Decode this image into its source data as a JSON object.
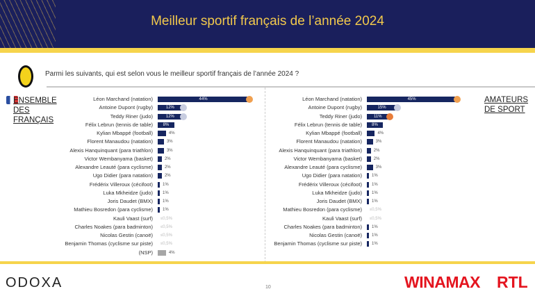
{
  "header": {
    "title": "Meilleur sportif français de l’année 2024"
  },
  "question": "Parmi les suivants, qui est selon vous le meilleur sportif français de l’année 2024 ?",
  "footer": {
    "brand": "ODOXA",
    "page": "10",
    "sponsor1": "WINAMAX",
    "sponsor2": "RTL"
  },
  "colors": {
    "bar": "#162660",
    "nsp": "#a6a6a6",
    "gold": "#f0a050",
    "silver": "#c8cde0",
    "bronze": "#e87d3a"
  },
  "chart_data": [
    {
      "type": "bar",
      "title": "ENSEMBLE DES FRANÇAIS",
      "unit": "%",
      "categories": [
        "Léon Marchand (natation)",
        "Antoine Dupont (rugby)",
        "Teddy Riner (judo)",
        "Félix Lebrun (tennis de table)",
        "Kylian Mbappé (football)",
        "Florent Manaudou (natation)",
        "Alexis Hanquinquant (para triathlon)",
        "Victor Wembanyama (basket)",
        "Alexandre Leauté (para cyclisme)",
        "Ugo Didier (para natation)",
        "Frédérix Villeroux (cécifoot)",
        "Luka Mkheidze (judo)",
        "Joris Daudet (BMX)",
        "Mathieu Bosredon (para cyclisme)",
        "Kauli Vaast (surf)",
        "Charles Noakes (para badminton)",
        "Nicolas Gestin (canoë)",
        "Benjamin Thomas (cyclisme sur piste)",
        "(NSP)"
      ],
      "values": [
        44,
        12,
        12,
        8,
        4,
        3,
        3,
        2,
        2,
        2,
        1,
        1,
        1,
        1,
        0.5,
        0.5,
        0.5,
        0.5,
        4
      ],
      "labels": [
        "44%",
        "12%",
        "12%",
        "8%",
        "4%",
        "3%",
        "3%",
        "2%",
        "2%",
        "2%",
        "1%",
        "1%",
        "1%",
        "1%",
        "≤0,5%",
        "≤0,5%",
        "≤0,5%",
        "≤0,5%",
        "4%"
      ],
      "medals": [
        "gold",
        "silver",
        "silver"
      ]
    },
    {
      "type": "bar",
      "title": "AMATEURS DE SPORT",
      "unit": "%",
      "categories": [
        "Léon Marchand (natation)",
        "Antoine Dupont (rugby)",
        "Teddy Riner (judo)",
        "Félix Lebrun (tennis de table)",
        "Kylian Mbappé (football)",
        "Florent Manaudou (natation)",
        "Alexis Hanquinquant (para triathlon)",
        "Victor Wembanyama (basket)",
        "Alexandre Leauté (para cyclisme)",
        "Ugo Didier (para natation)",
        "Frédérix Villeroux (cécifoot)",
        "Luka Mkheidze (judo)",
        "Joris Daudet (BMX)",
        "Mathieu Bosredon (para cyclisme)",
        "Kauli Vaast (surf)",
        "Charles Noakes (para badminton)",
        "Nicolas Gestin (canoë)",
        "Benjamin Thomas (cyclisme sur piste)"
      ],
      "values": [
        45,
        15,
        11,
        8,
        4,
        3,
        2,
        2,
        3,
        1,
        1,
        1,
        1,
        0.5,
        0.5,
        1,
        1,
        1
      ],
      "labels": [
        "45%",
        "15%",
        "11%",
        "8%",
        "4%",
        "3%",
        "2%",
        "2%",
        "3%",
        "1%",
        "1%",
        "1%",
        "1%",
        "≤0,5%",
        "≤0,5%",
        "1%",
        "1%",
        "1%"
      ],
      "medals": [
        "gold",
        "silver",
        "bronze"
      ]
    }
  ]
}
